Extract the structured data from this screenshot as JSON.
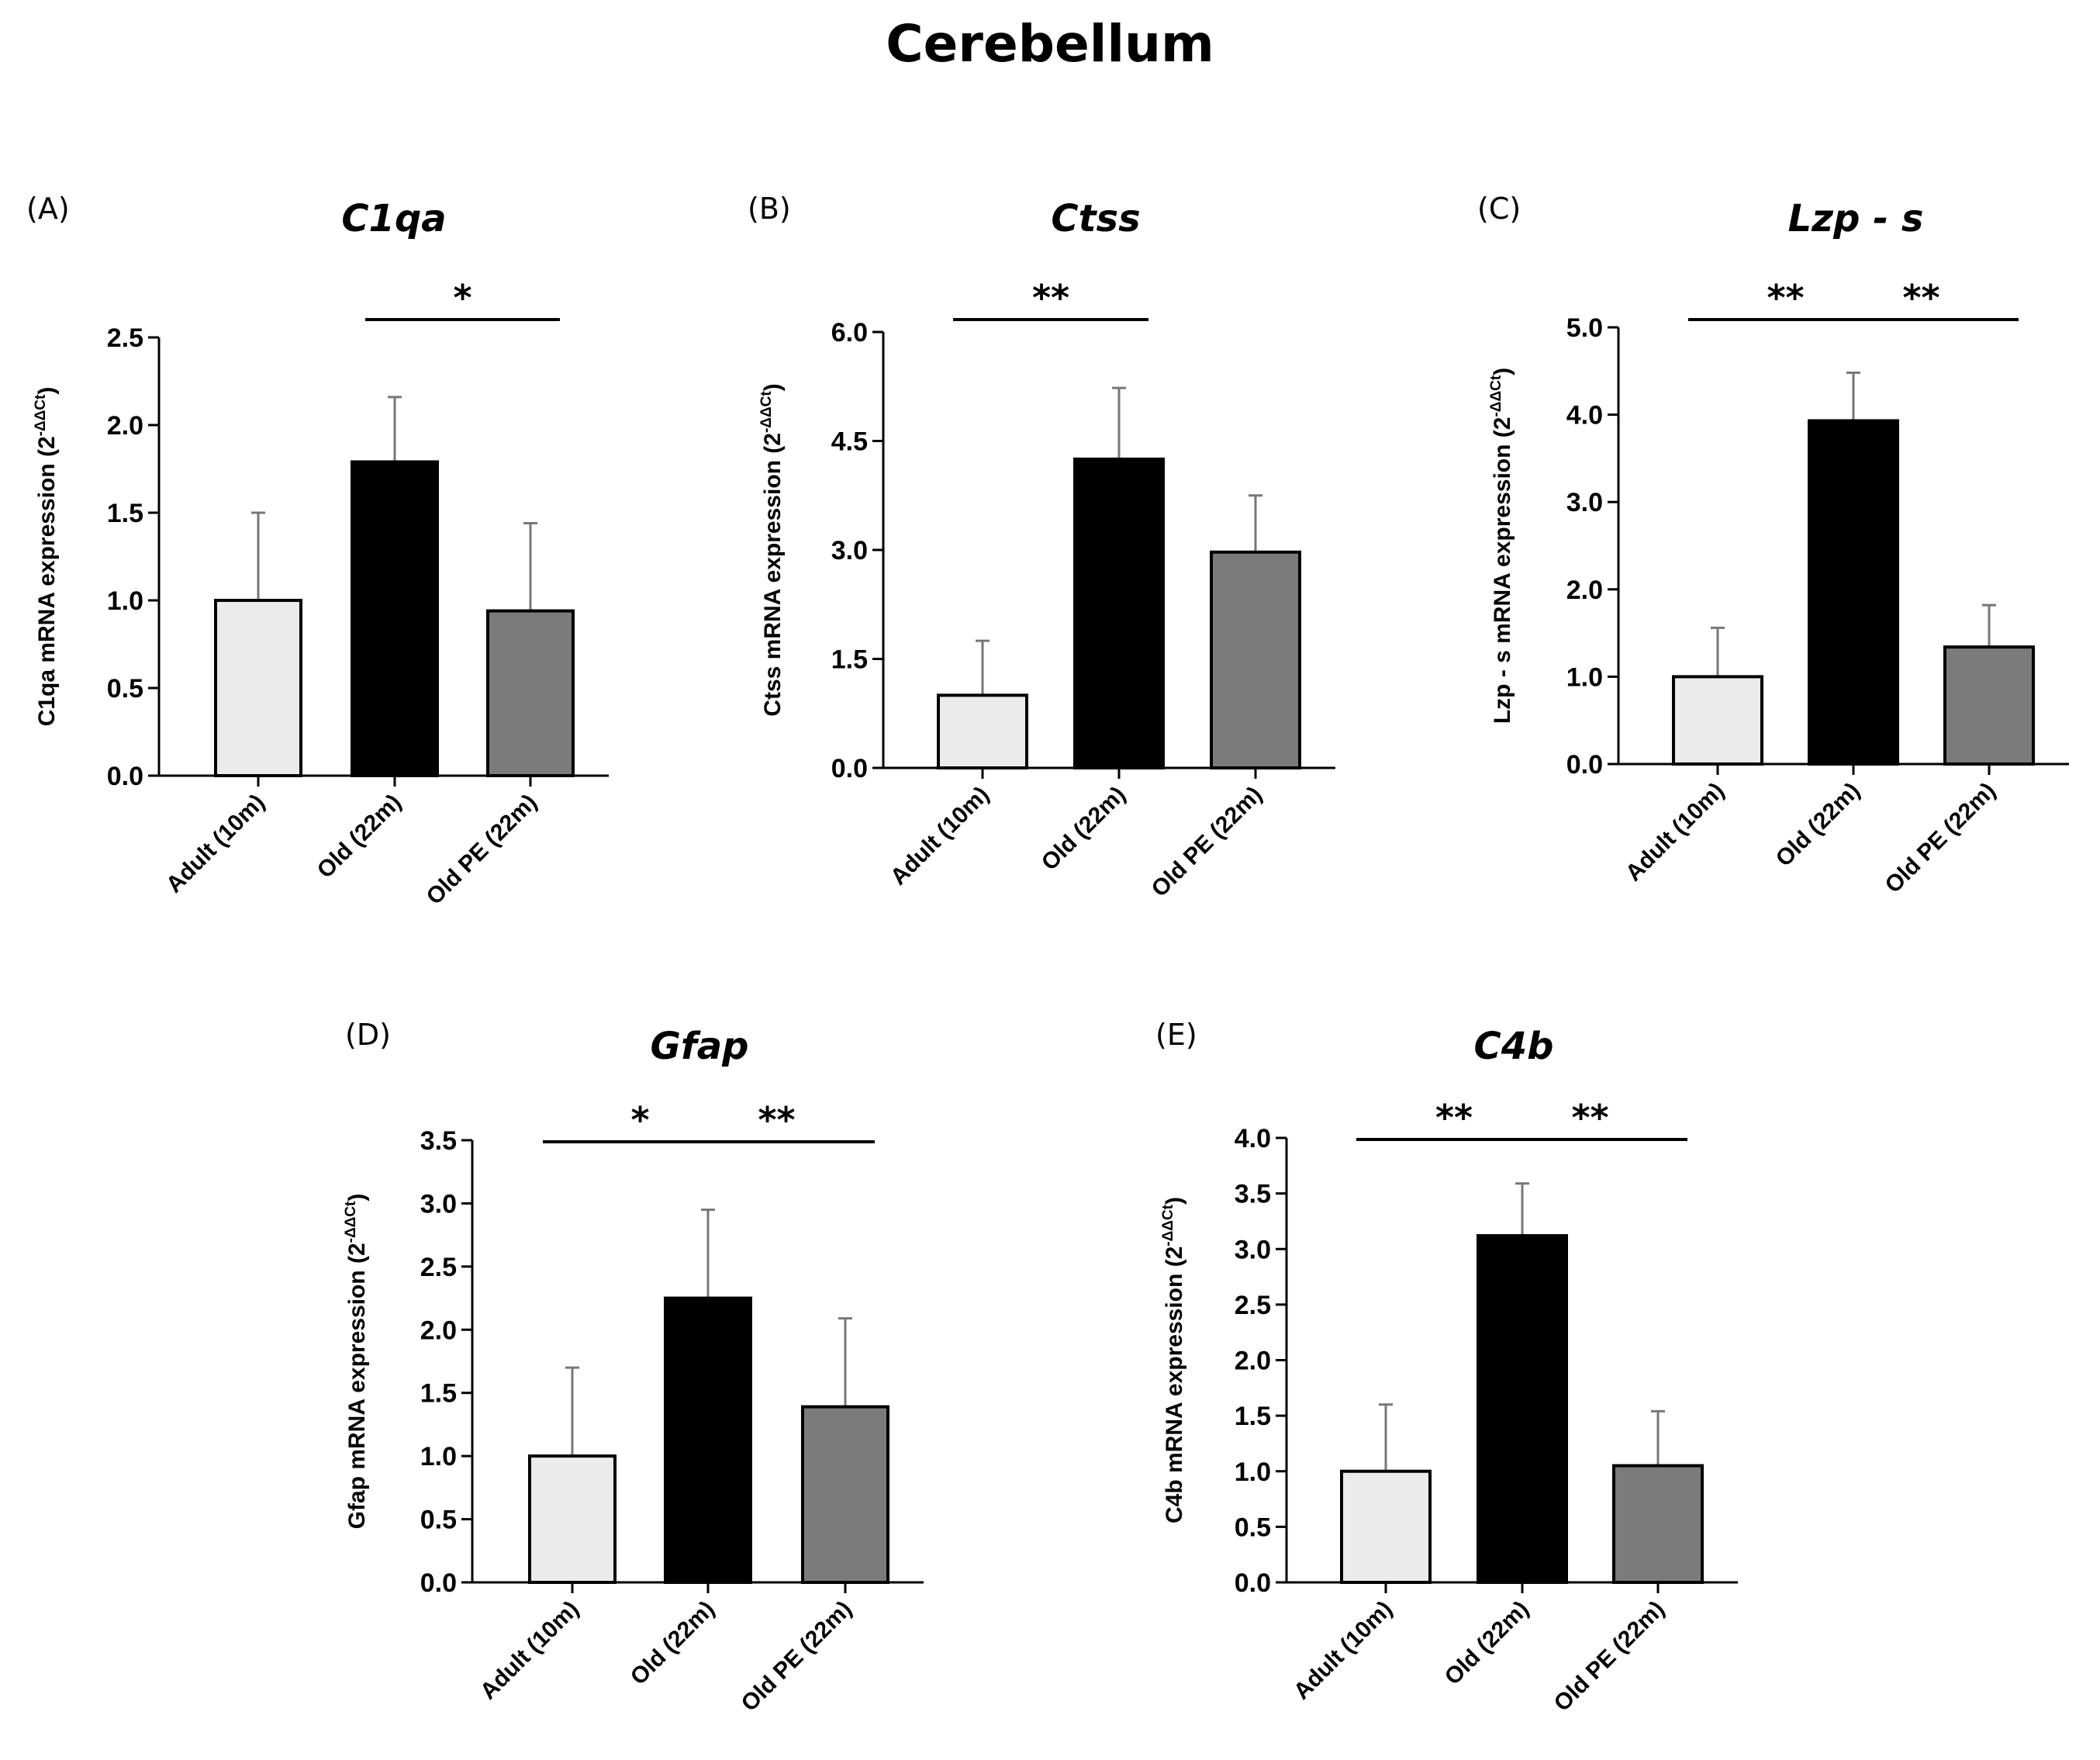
{
  "figure": {
    "title": "Cerebellum"
  },
  "chart_data": [
    {
      "panel": "(A)",
      "type": "bar",
      "title": "C1qa",
      "ylabel": "C1qa mRNA expression (2",
      "ylabel_sup": "-ΔΔCt",
      "ylabel_close": ")",
      "categories": [
        "Adult (10m)",
        "Old (22m)",
        "Old PE (22m)"
      ],
      "values": [
        1.0,
        1.79,
        0.94
      ],
      "errors": [
        0.5,
        0.37,
        0.5
      ],
      "colors": [
        "#ebebeb",
        "#000000",
        "#7b7b7b"
      ],
      "ylim": [
        0,
        2.5
      ],
      "yticks": [
        "0.0",
        "0.5",
        "1.0",
        "1.5",
        "2.0",
        "2.5"
      ],
      "significance": [
        {
          "from": 1,
          "to": 2,
          "label": "*"
        }
      ],
      "grid": false,
      "legend": "none"
    },
    {
      "panel": "(B)",
      "type": "bar",
      "title": "Ctss",
      "ylabel": "Ctss mRNA expression (2",
      "ylabel_sup": "-ΔΔCt",
      "ylabel_close": ")",
      "categories": [
        "Adult (10m)",
        "Old (22m)",
        "Old PE (22m)"
      ],
      "values": [
        1.0,
        4.25,
        2.97
      ],
      "errors": [
        0.75,
        0.98,
        0.78
      ],
      "colors": [
        "#ebebeb",
        "#000000",
        "#7b7b7b"
      ],
      "ylim": [
        0,
        6.0
      ],
      "yticks": [
        "0.0",
        "1.5",
        "3.0",
        "4.5",
        "6.0"
      ],
      "significance": [
        {
          "from": 0,
          "to": 1,
          "label": "**"
        }
      ],
      "grid": false,
      "legend": "none"
    },
    {
      "panel": "(C)",
      "type": "bar",
      "title": "Lzp - s",
      "ylabel": "Lzp - s mRNA expression (2",
      "ylabel_sup": "-ΔΔCt",
      "ylabel_close": ")",
      "categories": [
        "Adult (10m)",
        "Old (22m)",
        "Old PE (22m)"
      ],
      "values": [
        1.0,
        3.93,
        1.34
      ],
      "errors": [
        0.56,
        0.55,
        0.48
      ],
      "colors": [
        "#ebebeb",
        "#000000",
        "#7b7b7b"
      ],
      "ylim": [
        0,
        5.0
      ],
      "yticks": [
        "0.0",
        "1.0",
        "2.0",
        "3.0",
        "4.0",
        "5.0"
      ],
      "significance": [
        {
          "from": 0,
          "to": 1,
          "label": "**"
        },
        {
          "from": 1,
          "to": 2,
          "label": "**"
        }
      ],
      "grid": false,
      "legend": "none"
    },
    {
      "panel": "(D)",
      "type": "bar",
      "title": "Gfap",
      "ylabel": "Gfap mRNA expression (2",
      "ylabel_sup": "-ΔΔCt",
      "ylabel_close": ")",
      "categories": [
        "Adult (10m)",
        "Old (22m)",
        "Old PE (22m)"
      ],
      "values": [
        1.0,
        2.25,
        1.39
      ],
      "errors": [
        0.7,
        0.7,
        0.7
      ],
      "colors": [
        "#ebebeb",
        "#000000",
        "#7b7b7b"
      ],
      "ylim": [
        0,
        3.5
      ],
      "yticks": [
        "0.0",
        "0.5",
        "1.0",
        "1.5",
        "2.0",
        "2.5",
        "3.0",
        "3.5"
      ],
      "significance": [
        {
          "from": 0,
          "to": 1,
          "label": "*"
        },
        {
          "from": 1,
          "to": 2,
          "label": "**"
        }
      ],
      "grid": false,
      "legend": "none"
    },
    {
      "panel": "(E)",
      "type": "bar",
      "title": "C4b",
      "ylabel": "C4b mRNA expression (2",
      "ylabel_sup": "-ΔΔCt",
      "ylabel_close": ")",
      "categories": [
        "Adult (10m)",
        "Old (22m)",
        "Old PE (22m)"
      ],
      "values": [
        1.0,
        3.12,
        1.05
      ],
      "errors": [
        0.6,
        0.47,
        0.49
      ],
      "colors": [
        "#ebebeb",
        "#000000",
        "#7b7b7b"
      ],
      "ylim": [
        0,
        4.0
      ],
      "yticks": [
        "0.0",
        "0.5",
        "1.0",
        "1.5",
        "2.0",
        "2.5",
        "3.0",
        "3.5",
        "4.0"
      ],
      "significance": [
        {
          "from": 0,
          "to": 1,
          "label": "**"
        },
        {
          "from": 1,
          "to": 2,
          "label": "**"
        }
      ],
      "grid": false,
      "legend": "none"
    }
  ]
}
